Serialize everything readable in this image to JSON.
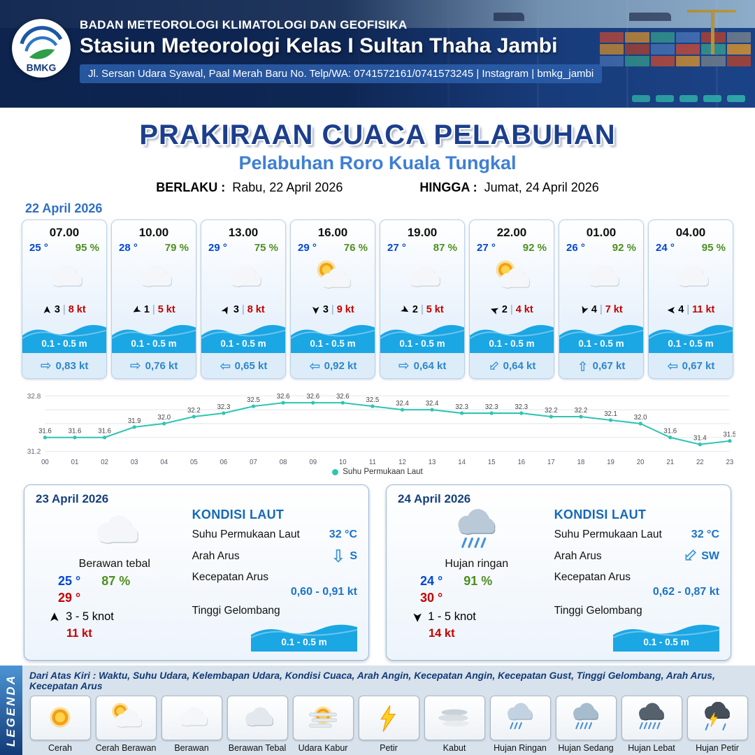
{
  "header": {
    "agency": "BADAN METEOROLOGI KLIMATOLOGI DAN GEOFISIKA",
    "station": "Stasiun Meteorologi Kelas I Sultan Thaha Jambi",
    "address": "Jl. Sersan Udara Syawal, Paal Merah Baru No. Telp/WA: 0741572161/0741573245 | Instagram | bmkg_jambi",
    "logo_label": "BMKG"
  },
  "title": {
    "main": "PRAKIRAAN CUACA PELABUHAN",
    "subtitle": "Pelabuhan Roro Kuala Tungkal",
    "valid_from_label": "BERLAKU :",
    "valid_from": "Rabu, 22 April 2026",
    "valid_to_label": "HINGGA :",
    "valid_to": "Jumat, 24 April 2026"
  },
  "forecast_date": "22 April 2026",
  "icons": {
    "wind_arrow": "➤",
    "current_arrow": "⇨"
  },
  "colors": {
    "accent_blue": "#1c3e8c",
    "temp_blue": "#0046d5",
    "humidity_green": "#4d8f1f",
    "speed_red": "#c40000",
    "wave_blue": "#1ba6e4",
    "line_teal": "#2fc5b2"
  },
  "hourly_cards": [
    {
      "time": "07.00",
      "temp": "25 °",
      "humidity": "95 %",
      "icon": "cloud",
      "wind_dir_deg": -90,
      "wind_gust": "3",
      "wind_speed": "8 kt",
      "wave_height": "0.1 - 0.5 m",
      "current_dir_deg": 0,
      "current_speed": "0,83 kt"
    },
    {
      "time": "10.00",
      "temp": "28 °",
      "humidity": "79 %",
      "icon": "cloud",
      "wind_dir_deg": 150,
      "wind_gust": "1",
      "wind_speed": "5 kt",
      "wave_height": "0.1 - 0.5 m",
      "current_dir_deg": 0,
      "current_speed": "0,76 kt"
    },
    {
      "time": "13.00",
      "temp": "29 °",
      "humidity": "75 %",
      "icon": "cloud",
      "wind_dir_deg": -60,
      "wind_gust": "3",
      "wind_speed": "8 kt",
      "wave_height": "0.1 - 0.5 m",
      "current_dir_deg": 180,
      "current_speed": "0,65 kt"
    },
    {
      "time": "16.00",
      "temp": "29 °",
      "humidity": "76 %",
      "icon": "sun-cloud",
      "wind_dir_deg": 90,
      "wind_gust": "3",
      "wind_speed": "9 kt",
      "wave_height": "0.1 - 0.5 m",
      "current_dir_deg": 180,
      "current_speed": "0,92 kt"
    },
    {
      "time": "19.00",
      "temp": "27 °",
      "humidity": "87 %",
      "icon": "cloud",
      "wind_dir_deg": 30,
      "wind_gust": "2",
      "wind_speed": "5 kt",
      "wave_height": "0.1 - 0.5 m",
      "current_dir_deg": 0,
      "current_speed": "0,64 kt"
    },
    {
      "time": "22.00",
      "temp": "27 °",
      "humidity": "92 %",
      "icon": "sun-cloud",
      "wind_dir_deg": 200,
      "wind_gust": "2",
      "wind_speed": "4 kt",
      "wave_height": "0.1 - 0.5 m",
      "current_dir_deg": 135,
      "current_speed": "0,64 kt"
    },
    {
      "time": "01.00",
      "temp": "26 °",
      "humidity": "92 %",
      "icon": "cloud",
      "wind_dir_deg": 110,
      "wind_gust": "4",
      "wind_speed": "7 kt",
      "wave_height": "0.1 - 0.5 m",
      "current_dir_deg": -90,
      "current_speed": "0,67 kt"
    },
    {
      "time": "04.00",
      "temp": "24 °",
      "humidity": "95 %",
      "icon": "cloud",
      "wind_dir_deg": 180,
      "wind_gust": "4",
      "wind_speed": "11 kt",
      "wave_height": "0.1 - 0.5 m",
      "current_dir_deg": 180,
      "current_speed": "0,67 kt"
    }
  ],
  "chart_data": {
    "type": "line",
    "x": [
      "00",
      "01",
      "02",
      "03",
      "04",
      "05",
      "06",
      "07",
      "08",
      "09",
      "10",
      "11",
      "12",
      "13",
      "14",
      "15",
      "16",
      "17",
      "18",
      "19",
      "20",
      "21",
      "22",
      "23"
    ],
    "values": [
      31.6,
      31.6,
      31.6,
      31.9,
      32.0,
      32.2,
      32.3,
      32.5,
      32.6,
      32.6,
      32.6,
      32.5,
      32.4,
      32.4,
      32.3,
      32.3,
      32.3,
      32.2,
      32.2,
      32.1,
      32.0,
      31.6,
      31.4,
      31.5
    ],
    "ylim": [
      31.2,
      32.8
    ],
    "ytick_labels": [
      "31.2",
      "32.8"
    ],
    "legend": "Suhu Permukaan Laut",
    "line_color": "#2fc5b2",
    "grid": true,
    "legend_position": "bottom-center",
    "title": "",
    "xlabel": "",
    "ylabel": ""
  },
  "day_cards": [
    {
      "date": "23 April 2026",
      "icon": "cloud",
      "condition": "Berawan tebal",
      "temp_min": "25 °",
      "humidity": "87 %",
      "temp_max": "29 °",
      "wind_dir_deg": -90,
      "wind_range": "3 - 5 knot",
      "gust": "11 kt",
      "sea": {
        "title": "KONDISI LAUT",
        "sst_label": "Suhu Permukaan Laut",
        "sst": "32 °C",
        "current_dir_label": "Arah Arus",
        "current_dir": "S",
        "current_dir_deg": 90,
        "current_speed_label": "Kecepatan Arus",
        "current_speed": "0,60 - 0,91 kt",
        "wave_label": "Tinggi Gelombang",
        "wave": "0.1 - 0.5 m"
      }
    },
    {
      "date": "24 April 2026",
      "icon": "rain",
      "condition": "Hujan ringan",
      "temp_min": "24 °",
      "humidity": "91 %",
      "temp_max": "30 °",
      "wind_dir_deg": 90,
      "wind_range": "1 - 5 knot",
      "gust": "14 kt",
      "sea": {
        "title": "KONDISI LAUT",
        "sst_label": "Suhu Permukaan Laut",
        "sst": "32 °C",
        "current_dir_label": "Arah Arus",
        "current_dir": "SW",
        "current_dir_deg": 135,
        "current_speed_label": "Kecepatan Arus",
        "current_speed": "0,62 - 0,87 kt",
        "wave_label": "Tinggi Gelombang",
        "wave": "0.1 - 0.5 m"
      }
    }
  ],
  "legend": {
    "strip_label": "LEGENDA",
    "note": "Dari Atas Kiri : Waktu, Suhu Udara, Kelembapan Udara, Kondisi Cuaca, Arah Angin, Kecepatan Angin, Kecepatan Gust, Tinggi Gelombang, Arah Arus, Kecepatan Arus",
    "items": [
      {
        "label": "Cerah",
        "icon": "sun"
      },
      {
        "label": "Cerah Berawan",
        "icon": "sun-cloud"
      },
      {
        "label": "Berawan",
        "icon": "cloud"
      },
      {
        "label": "Berawan Tebal",
        "icon": "cloud-thick"
      },
      {
        "label": "Udara Kabur",
        "icon": "haze"
      },
      {
        "label": "Petir",
        "icon": "lightning"
      },
      {
        "label": "Kabut",
        "icon": "fog"
      },
      {
        "label": "Hujan Ringan",
        "icon": "rain-light"
      },
      {
        "label": "Hujan Sedang",
        "icon": "rain-medium"
      },
      {
        "label": "Hujan Lebat",
        "icon": "rain-heavy"
      },
      {
        "label": "Hujan Petir",
        "icon": "thunderstorm"
      }
    ]
  }
}
